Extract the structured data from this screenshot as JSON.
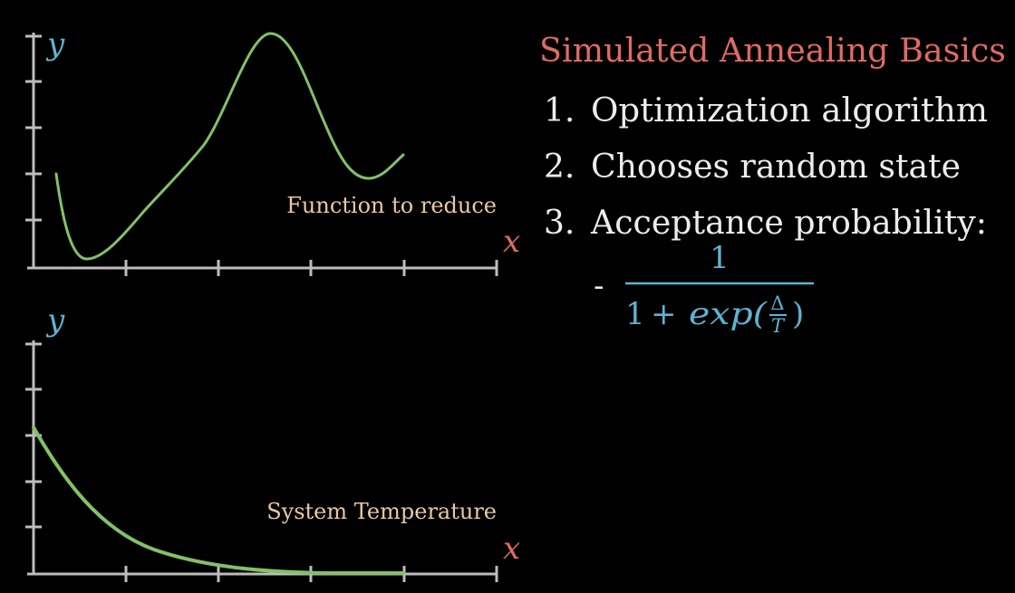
{
  "title": "Simulated Annealing Basics",
  "list": [
    {
      "number": "1.",
      "text": "Optimization algorithm"
    },
    {
      "number": "2.",
      "text": "Chooses random state"
    },
    {
      "number": "3.",
      "text": "Acceptance probability:"
    }
  ],
  "formula": {
    "bullet": "-",
    "numerator": "1",
    "denominator_one": "1",
    "denominator_plus": "+",
    "denominator_exp": "exp(",
    "delta": "Δ",
    "temperature": "T",
    "close_paren": ")"
  },
  "colors": {
    "background": "#000000",
    "axis": "#bdbdbd",
    "curve": "#83c167",
    "y_label": "#5fb3d1",
    "x_label": "#e06a64",
    "plot_label": "#e8c9a3",
    "title": "#e06a64",
    "text": "#ececec",
    "formula": "#5fb3d1"
  },
  "plots": [
    {
      "name": "function-plot",
      "y_label": "y",
      "x_label": "x",
      "caption": "Function to reduce",
      "curve": "wavy function with a minimum near the left, a peak in the middle and a smaller dip on the right"
    },
    {
      "name": "temperature-plot",
      "y_label": "y",
      "x_label": "x",
      "caption": "System Temperature",
      "curve": "exponential decay"
    }
  ]
}
